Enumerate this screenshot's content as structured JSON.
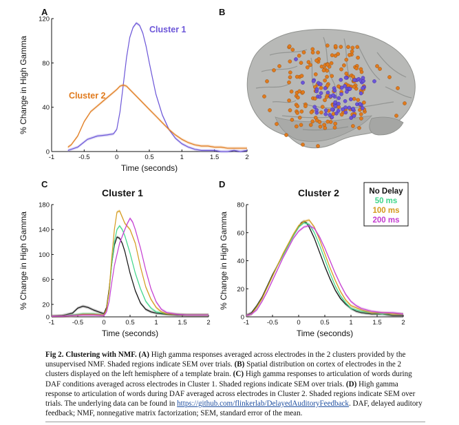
{
  "figure": {
    "panels": {
      "A": {
        "letter": "A"
      },
      "B": {
        "letter": "B"
      },
      "C": {
        "letter": "C",
        "title": "Cluster 1"
      },
      "D": {
        "letter": "D",
        "title": "Cluster 2"
      }
    },
    "legend": {
      "items": [
        {
          "label": "No Delay",
          "color": "#111111"
        },
        {
          "label": "50 ms",
          "color": "#3fd68a"
        },
        {
          "label": "100 ms",
          "color": "#d49a1c"
        },
        {
          "label": "200 ms",
          "color": "#c43cd1"
        }
      ]
    },
    "brain": {
      "description_label": "Cortical surface with electrode locations",
      "cluster1_color": "#6b55d8",
      "cluster2_color": "#e07a1d"
    }
  },
  "chart_data": [
    {
      "type": "line",
      "panel": "A",
      "title": "",
      "xlabel": "Time (seconds)",
      "ylabel": "% Change in High Gamma",
      "xlim": [
        -1,
        2
      ],
      "ylim": [
        0,
        120
      ],
      "xticks": [
        "-1",
        "-0.5",
        "0",
        "0.5",
        "1",
        "1.5",
        "2"
      ],
      "xtick_values": [
        -1,
        -0.5,
        0,
        0.5,
        1,
        1.5,
        2
      ],
      "yticks": [
        "0",
        "40",
        "80",
        "120"
      ],
      "ytick_values": [
        0,
        40,
        80,
        120
      ],
      "annotations": [
        {
          "text": "Cluster 1",
          "color": "#6b55d8"
        },
        {
          "text": "Cluster 2",
          "color": "#e07a1d"
        }
      ],
      "series": [
        {
          "name": "Cluster 1",
          "color": "#6b55d8",
          "x": [
            -0.75,
            -0.6,
            -0.45,
            -0.3,
            -0.15,
            -0.05,
            0,
            0.05,
            0.1,
            0.15,
            0.2,
            0.25,
            0.3,
            0.35,
            0.4,
            0.45,
            0.5,
            0.55,
            0.6,
            0.7,
            0.8,
            0.9,
            1.0,
            1.1,
            1.2,
            1.3,
            1.4,
            1.5,
            1.6,
            1.7,
            1.8,
            1.9,
            2.0
          ],
          "y": [
            1,
            4,
            11,
            14,
            15,
            16,
            20,
            36,
            60,
            85,
            103,
            112,
            116,
            114,
            107,
            95,
            80,
            66,
            52,
            33,
            20,
            12,
            7,
            4,
            2,
            1,
            1,
            1,
            0,
            0,
            1,
            0,
            1
          ]
        },
        {
          "name": "Cluster 2",
          "color": "#e07a1d",
          "x": [
            -0.75,
            -0.7,
            -0.6,
            -0.5,
            -0.4,
            -0.3,
            -0.2,
            -0.1,
            0,
            0.05,
            0.1,
            0.15,
            0.2,
            0.3,
            0.4,
            0.5,
            0.6,
            0.7,
            0.8,
            0.9,
            1.0,
            1.1,
            1.2,
            1.3,
            1.4,
            1.5,
            1.6,
            1.7,
            1.8,
            1.9,
            2.0
          ],
          "y": [
            4,
            6,
            14,
            27,
            36,
            41,
            46,
            51,
            56,
            59,
            60,
            59,
            56,
            50,
            44,
            38,
            32,
            26,
            20,
            15,
            11,
            8,
            6,
            5,
            5,
            4,
            4,
            3,
            3,
            3,
            3
          ]
        }
      ]
    },
    {
      "type": "line",
      "panel": "C",
      "title": "Cluster 1",
      "xlabel": "Time (seconds)",
      "ylabel": "% Change in High Gamma",
      "xlim": [
        -1,
        2
      ],
      "ylim": [
        0,
        180
      ],
      "xticks": [
        "-1",
        "-0.5",
        "0",
        "0.5",
        "1",
        "1.5",
        "2"
      ],
      "xtick_values": [
        -1,
        -0.5,
        0,
        0.5,
        1,
        1.5,
        2
      ],
      "yticks": [
        "0",
        "20",
        "60",
        "100",
        "140",
        "180"
      ],
      "ytick_values": [
        0,
        20,
        60,
        100,
        140,
        180
      ],
      "series": [
        {
          "name": "No Delay",
          "color": "#111111",
          "x": [
            -1,
            -0.8,
            -0.6,
            -0.5,
            -0.4,
            -0.3,
            -0.2,
            -0.1,
            0,
            0.05,
            0.1,
            0.15,
            0.2,
            0.25,
            0.3,
            0.35,
            0.4,
            0.5,
            0.6,
            0.7,
            0.8,
            0.9,
            1.0,
            1.2,
            1.4,
            1.6,
            1.8,
            2.0
          ],
          "y": [
            1,
            2,
            6,
            14,
            17,
            15,
            11,
            8,
            5,
            15,
            45,
            85,
            115,
            128,
            126,
            118,
            105,
            70,
            42,
            22,
            12,
            8,
            6,
            4,
            3,
            3,
            3,
            3
          ]
        },
        {
          "name": "50 ms",
          "color": "#3fd68a",
          "x": [
            -1,
            -0.8,
            -0.6,
            -0.4,
            -0.2,
            0,
            0.05,
            0.1,
            0.15,
            0.2,
            0.25,
            0.3,
            0.35,
            0.4,
            0.5,
            0.6,
            0.7,
            0.8,
            0.9,
            1.0,
            1.2,
            1.4,
            1.6,
            1.8,
            2.0
          ],
          "y": [
            1,
            1,
            3,
            5,
            5,
            3,
            12,
            40,
            85,
            120,
            140,
            146,
            140,
            130,
            102,
            70,
            45,
            25,
            14,
            8,
            5,
            4,
            3,
            3,
            3
          ]
        },
        {
          "name": "100 ms",
          "color": "#d49a1c",
          "x": [
            -1,
            -0.8,
            -0.6,
            -0.4,
            -0.2,
            0,
            0.05,
            0.1,
            0.15,
            0.2,
            0.25,
            0.3,
            0.35,
            0.4,
            0.5,
            0.6,
            0.7,
            0.8,
            0.9,
            1.0,
            1.1,
            1.2,
            1.4,
            1.6,
            1.8,
            2.0
          ],
          "y": [
            1,
            1,
            2,
            4,
            4,
            3,
            12,
            42,
            95,
            140,
            168,
            170,
            160,
            150,
            140,
            118,
            80,
            48,
            28,
            15,
            8,
            5,
            4,
            3,
            3,
            3
          ]
        },
        {
          "name": "200 ms",
          "color": "#c43cd1",
          "x": [
            -1,
            -0.8,
            -0.6,
            -0.4,
            -0.2,
            0,
            0.05,
            0.1,
            0.15,
            0.2,
            0.3,
            0.4,
            0.45,
            0.5,
            0.55,
            0.6,
            0.7,
            0.8,
            0.9,
            1.0,
            1.1,
            1.2,
            1.4,
            1.6,
            1.8,
            2.0
          ],
          "y": [
            1,
            1,
            2,
            3,
            3,
            2,
            8,
            25,
            55,
            82,
            118,
            140,
            150,
            158,
            152,
            140,
            110,
            75,
            45,
            24,
            12,
            7,
            4,
            3,
            3,
            3
          ]
        }
      ]
    },
    {
      "type": "line",
      "panel": "D",
      "title": "Cluster 2",
      "xlabel": "Time (seconds)",
      "ylabel": "% Change in High Gamma",
      "xlim": [
        -1,
        2
      ],
      "ylim": [
        0,
        80
      ],
      "xticks": [
        "-1",
        "-0.5",
        "0",
        "0.5",
        "1",
        "1.5",
        "2"
      ],
      "xtick_values": [
        -1,
        -0.5,
        0,
        0.5,
        1,
        1.5,
        2
      ],
      "yticks": [
        "0",
        "20",
        "40",
        "60",
        "80"
      ],
      "ytick_values": [
        0,
        20,
        40,
        60,
        80
      ],
      "series": [
        {
          "name": "No Delay",
          "color": "#111111",
          "x": [
            -1,
            -0.9,
            -0.8,
            -0.7,
            -0.6,
            -0.5,
            -0.4,
            -0.3,
            -0.2,
            -0.1,
            0,
            0.05,
            0.1,
            0.15,
            0.2,
            0.3,
            0.4,
            0.5,
            0.6,
            0.7,
            0.8,
            0.9,
            1.0,
            1.1,
            1.2,
            1.4,
            1.6,
            1.8,
            2.0
          ],
          "y": [
            1,
            3,
            8,
            14,
            22,
            30,
            37,
            44,
            51,
            58,
            64,
            67,
            68,
            67,
            64,
            56,
            46,
            36,
            27,
            19,
            13,
            9,
            6,
            4,
            3,
            2,
            2,
            1,
            1
          ]
        },
        {
          "name": "50 ms",
          "color": "#3fd68a",
          "x": [
            -1,
            -0.9,
            -0.8,
            -0.7,
            -0.6,
            -0.5,
            -0.4,
            -0.3,
            -0.2,
            -0.1,
            0,
            0.1,
            0.2,
            0.3,
            0.4,
            0.5,
            0.6,
            0.7,
            0.8,
            0.9,
            1.0,
            1.2,
            1.4,
            1.6,
            1.8,
            2.0
          ],
          "y": [
            1,
            2,
            7,
            13,
            21,
            29,
            37,
            44,
            51,
            58,
            64,
            67,
            66,
            60,
            51,
            41,
            31,
            22,
            15,
            10,
            6,
            4,
            3,
            2,
            2,
            2
          ]
        },
        {
          "name": "100 ms",
          "color": "#d49a1c",
          "x": [
            -1,
            -0.9,
            -0.8,
            -0.7,
            -0.6,
            -0.5,
            -0.4,
            -0.3,
            -0.2,
            -0.1,
            0,
            0.1,
            0.2,
            0.3,
            0.4,
            0.5,
            0.6,
            0.7,
            0.8,
            0.9,
            1.0,
            1.2,
            1.4,
            1.6,
            1.8,
            2.0
          ],
          "y": [
            1,
            2,
            7,
            13,
            21,
            29,
            37,
            45,
            52,
            59,
            65,
            68,
            69,
            64,
            55,
            45,
            35,
            26,
            18,
            12,
            8,
            5,
            3,
            3,
            2,
            2
          ]
        },
        {
          "name": "200 ms",
          "color": "#c43cd1",
          "x": [
            -1,
            -0.9,
            -0.8,
            -0.7,
            -0.6,
            -0.5,
            -0.4,
            -0.3,
            -0.2,
            -0.1,
            0,
            0.1,
            0.2,
            0.3,
            0.4,
            0.5,
            0.6,
            0.7,
            0.8,
            0.9,
            1.0,
            1.1,
            1.2,
            1.4,
            1.6,
            1.8,
            2.0
          ],
          "y": [
            1,
            2,
            5,
            11,
            18,
            26,
            34,
            42,
            49,
            56,
            61,
            64,
            65,
            63,
            57,
            49,
            40,
            31,
            23,
            16,
            11,
            8,
            6,
            4,
            3,
            3,
            2
          ]
        }
      ]
    }
  ],
  "caption": {
    "label": "Fig 2. Clustering with NMF.",
    "a_tag": "(A)",
    "a_text": "High gamma responses averaged across electrodes in the 2 clusters provided by the unsupervised NMF. Shaded regions indicate SEM over trials.",
    "b_tag": "(B)",
    "b_text": "Spatial distribution on cortex of electrodes in the 2 clusters displayed on the left hemisphere of a template brain.",
    "c_tag": "(C)",
    "c_text": "High gamma responses to articulation of words during DAF conditions averaged across electrodes in Cluster 1. Shaded regions indicate SEM over trials.",
    "d_tag": "(D)",
    "d_text": "High gamma response to articulation of words during DAF averaged across electrodes in Cluster 2. Shaded regions indicate SEM over trials. The underlying data can be found in",
    "link": "https://github.com/flinkerlab/DelayedAuditoryFeedback",
    "tail": ". DAF, delayed auditory feedback; NMF, nonnegative matrix factorization; SEM, standard error of the mean."
  }
}
